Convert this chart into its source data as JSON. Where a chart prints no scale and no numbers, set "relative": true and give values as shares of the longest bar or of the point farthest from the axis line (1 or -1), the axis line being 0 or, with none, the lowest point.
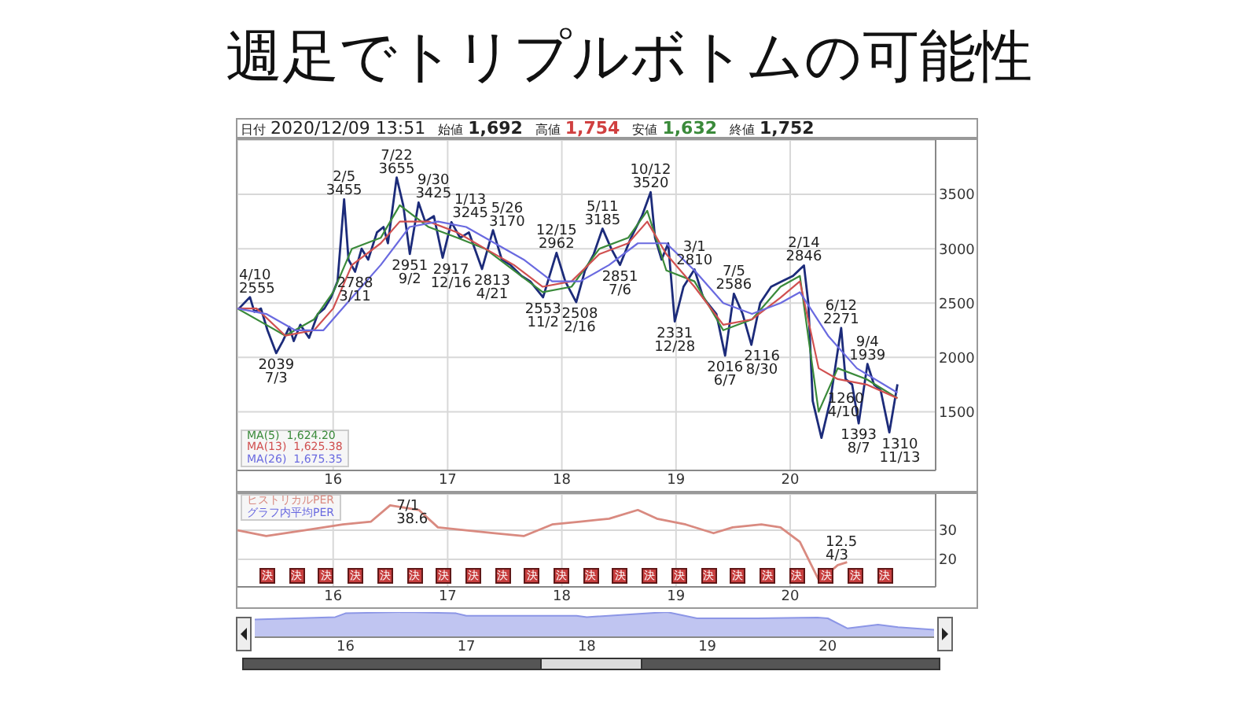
{
  "chart_data": [
    {
      "type": "line",
      "title": "週足でトリプルボトムの可能性",
      "annotations": [
        "日付",
        "2020/12/09 13:51",
        "始値",
        "1,692",
        "高値",
        "1,754",
        "安値",
        "1,632",
        "終値",
        "1,752",
        {
          "text": "4/10 2555",
          "x": "2015-04-10",
          "y": 2555
        },
        {
          "text": "2039 7/3",
          "x": "2015-07-03",
          "y": 2039
        },
        {
          "text": "2/5 3455",
          "x": "2016-02-05",
          "y": 3455
        },
        {
          "text": "2788 3/11",
          "x": "2016-03-11",
          "y": 2788
        },
        {
          "text": "7/22 3655",
          "x": "2016-07-22",
          "y": 3655
        },
        {
          "text": "2951 9/2",
          "x": "2016-09-02",
          "y": 2951
        },
        {
          "text": "9/30 3425",
          "x": "2016-09-30",
          "y": 3425
        },
        {
          "text": "2917 12/16",
          "x": "2016-12-16",
          "y": 2917
        },
        {
          "text": "1/13 3245",
          "x": "2017-01-13",
          "y": 3245
        },
        {
          "text": "2813 4/21",
          "x": "2017-04-21",
          "y": 2813
        },
        {
          "text": "5/26 3170",
          "x": "2017-05-26",
          "y": 3170
        },
        {
          "text": "2553 11/2",
          "x": "2017-11-02",
          "y": 2553
        },
        {
          "text": "12/15 2962",
          "x": "2017-12-15",
          "y": 2962
        },
        {
          "text": "2508 2/16",
          "x": "2018-02-16",
          "y": 2508
        },
        {
          "text": "5/11 3185",
          "x": "2018-05-11",
          "y": 3185
        },
        {
          "text": "2851 7/6",
          "x": "2018-07-06",
          "y": 2851
        },
        {
          "text": "10/12 3520",
          "x": "2018-10-12",
          "y": 3520
        },
        {
          "text": "2331 12/28",
          "x": "2018-12-28",
          "y": 2331
        },
        {
          "text": "3/1 2810",
          "x": "2019-03-01",
          "y": 2810
        },
        {
          "text": "2016 6/7",
          "x": "2019-06-07",
          "y": 2016
        },
        {
          "text": "7/5 2586",
          "x": "2019-07-05",
          "y": 2586
        },
        {
          "text": "2116 8/30",
          "x": "2019-08-30",
          "y": 2116
        },
        {
          "text": "2/14 2846",
          "x": "2020-02-14",
          "y": 2846
        },
        {
          "text": "1260 4/10",
          "x": "2020-04-10",
          "y": 1260
        },
        {
          "text": "6/12 2271",
          "x": "2020-06-12",
          "y": 2271
        },
        {
          "text": "1393 8/7",
          "x": "2020-08-07",
          "y": 1393
        },
        {
          "text": "9/4 1939",
          "x": "2020-09-04",
          "y": 1939
        },
        {
          "text": "1310 11/13",
          "x": "2020-11-13",
          "y": 1310
        }
      ],
      "xlim": [
        "2015-03-01",
        "2021-04-10"
      ],
      "xticks": [
        {
          "value": "2016",
          "label": "16"
        },
        {
          "value": "2017",
          "label": "17"
        },
        {
          "value": "2018",
          "label": "18"
        },
        {
          "value": "2019",
          "label": "19"
        },
        {
          "value": "2020",
          "label": "20"
        }
      ],
      "ylim": [
        960,
        4000
      ],
      "yticks": [
        1500,
        2000,
        2500,
        3000,
        3500
      ],
      "grid": true,
      "legend": "bottom left",
      "series": [
        {
          "color": "#1c2b7a",
          "x": [
            "2015-03-06",
            "2015-04-10",
            "2015-04-24",
            "2015-05-15",
            "2015-06-05",
            "2015-07-03",
            "2015-07-24",
            "2015-08-14",
            "2015-08-28",
            "2015-09-18",
            "2015-10-16",
            "2015-11-13",
            "2015-12-04",
            "2015-12-25",
            "2016-01-15",
            "2016-02-05",
            "2016-02-19",
            "2016-03-11",
            "2016-04-01",
            "2016-04-22",
            "2016-05-20",
            "2016-06-10",
            "2016-06-24",
            "2016-07-22",
            "2016-08-12",
            "2016-09-02",
            "2016-09-30",
            "2016-10-21",
            "2016-11-18",
            "2016-12-16",
            "2017-01-13",
            "2017-02-10",
            "2017-03-10",
            "2017-04-21",
            "2017-05-26",
            "2017-06-23",
            "2017-07-21",
            "2017-08-25",
            "2017-09-22",
            "2017-11-02",
            "2017-12-15",
            "2018-01-12",
            "2018-02-16",
            "2018-03-16",
            "2018-04-13",
            "2018-05-11",
            "2018-06-08",
            "2018-07-06",
            "2018-08-10",
            "2018-09-14",
            "2018-10-12",
            "2018-10-26",
            "2018-11-16",
            "2018-12-07",
            "2018-12-28",
            "2019-01-25",
            "2019-03-01",
            "2019-03-29",
            "2019-05-10",
            "2019-06-07",
            "2019-07-05",
            "2019-08-02",
            "2019-08-30",
            "2019-09-27",
            "2019-11-01",
            "2019-12-06",
            "2020-01-10",
            "2020-02-14",
            "2020-02-28",
            "2020-03-13",
            "2020-04-10",
            "2020-05-08",
            "2020-06-12",
            "2020-06-26",
            "2020-07-17",
            "2020-08-07",
            "2020-09-04",
            "2020-09-25",
            "2020-10-16",
            "2020-11-13",
            "2020-12-09"
          ],
          "values": [
            2450,
            2555,
            2420,
            2450,
            2250,
            2039,
            2150,
            2280,
            2150,
            2300,
            2180,
            2400,
            2450,
            2550,
            2700,
            3455,
            2900,
            2788,
            3000,
            2900,
            3150,
            3200,
            3050,
            3655,
            3400,
            2951,
            3425,
            3250,
            3300,
            2917,
            3245,
            3100,
            3150,
            2813,
            3170,
            2900,
            2850,
            2750,
            2700,
            2553,
            2962,
            2700,
            2508,
            2800,
            2950,
            3185,
            3000,
            2851,
            3100,
            3300,
            3520,
            3100,
            2900,
            3050,
            2331,
            2650,
            2810,
            2550,
            2400,
            2016,
            2586,
            2400,
            2116,
            2500,
            2650,
            2700,
            2750,
            2846,
            2500,
            1600,
            1260,
            1600,
            2271,
            1800,
            1750,
            1393,
            1939,
            1750,
            1700,
            1310,
            1752
          ]
        },
        {
          "name": "MA(5)  1,624.20",
          "color": "#3a8a3a",
          "x": [
            "2015-03",
            "2015-06",
            "2015-08",
            "2015-11",
            "2016-01",
            "2016-03",
            "2016-06",
            "2016-08",
            "2016-11",
            "2017-02",
            "2017-05",
            "2017-08",
            "2017-11",
            "2018-02",
            "2018-05",
            "2018-08",
            "2018-10",
            "2018-12",
            "2019-03",
            "2019-06",
            "2019-09",
            "2019-12",
            "2020-02",
            "2020-04",
            "2020-06",
            "2020-09",
            "2020-12-09"
          ],
          "values": [
            2450,
            2300,
            2200,
            2350,
            2600,
            3000,
            3100,
            3400,
            3200,
            3100,
            3000,
            2800,
            2600,
            2650,
            3000,
            3100,
            3350,
            2800,
            2700,
            2250,
            2350,
            2650,
            2750,
            1500,
            1900,
            1800,
            1624
          ]
        },
        {
          "name": "MA(13)  1,625.38",
          "color": "#d05050",
          "x": [
            "2015-03",
            "2015-05",
            "2015-08",
            "2015-11",
            "2016-01",
            "2016-03",
            "2016-06",
            "2016-08",
            "2016-11",
            "2017-02",
            "2017-05",
            "2017-08",
            "2017-11",
            "2018-02",
            "2018-05",
            "2018-08",
            "2018-10",
            "2018-12",
            "2019-03",
            "2019-06",
            "2019-09",
            "2019-12",
            "2020-02",
            "2020-04",
            "2020-06",
            "2020-09",
            "2020-12-09"
          ],
          "values": [
            2450,
            2450,
            2200,
            2250,
            2450,
            2850,
            3050,
            3250,
            3250,
            3150,
            3000,
            2850,
            2650,
            2700,
            2950,
            3050,
            3250,
            2950,
            2650,
            2300,
            2350,
            2550,
            2700,
            1900,
            1800,
            1750,
            1625
          ]
        },
        {
          "name": "MA(26)  1,675.35",
          "color": "#6a6ae0",
          "x": [
            "2015-03",
            "2015-06",
            "2015-09",
            "2015-12",
            "2016-03",
            "2016-06",
            "2016-09",
            "2016-12",
            "2017-03",
            "2017-06",
            "2017-09",
            "2017-12",
            "2018-03",
            "2018-06",
            "2018-09",
            "2018-12",
            "2019-03",
            "2019-06",
            "2019-09",
            "2019-12",
            "2020-02",
            "2020-05",
            "2020-08",
            "2020-12-09"
          ],
          "values": [
            2450,
            2400,
            2250,
            2250,
            2550,
            2850,
            3200,
            3250,
            3200,
            3050,
            2900,
            2700,
            2700,
            2850,
            3050,
            3050,
            2800,
            2500,
            2400,
            2500,
            2600,
            2200,
            1900,
            1675
          ]
        }
      ]
    },
    {
      "type": "line",
      "legend": "top left",
      "grid": true,
      "annotations": [
        {
          "text": "7/1 38.6",
          "x": "2016-07-01",
          "y": 38.6
        },
        {
          "text": "12.5 4/3",
          "x": "2020-04-03",
          "y": 12.5
        },
        "グラフ内平均PER",
        "決",
        "決",
        "決",
        "決",
        "決",
        "決",
        "決",
        "決",
        "決",
        "決",
        "決",
        "決",
        "決",
        "決",
        "決",
        "決",
        "決",
        "決",
        "決",
        "決",
        "決",
        "決"
      ],
      "xlim": [
        "2015-03-01",
        "2021-04-10"
      ],
      "xticks": [
        {
          "value": "2016",
          "label": "16"
        },
        {
          "value": "2017",
          "label": "17"
        },
        {
          "value": "2018",
          "label": "18"
        },
        {
          "value": "2019",
          "label": "19"
        },
        {
          "value": "2020",
          "label": "20"
        }
      ],
      "ylim": [
        10.5,
        42.5
      ],
      "yticks": [
        20,
        30
      ],
      "series": [
        {
          "name": "ヒストリカルPER",
          "color": "#d98a80",
          "x": [
            "2015-03",
            "2015-06",
            "2015-10",
            "2016-02",
            "2016-05",
            "2016-07-01",
            "2016-10",
            "2016-12",
            "2017-03",
            "2017-06",
            "2017-09",
            "2017-12",
            "2018-03",
            "2018-06",
            "2018-09",
            "2018-11",
            "2019-02",
            "2019-05",
            "2019-07",
            "2019-10",
            "2019-12",
            "2020-02",
            "2020-04-03",
            "2020-06",
            "2020-07"
          ],
          "values": [
            30,
            28,
            30,
            32,
            33,
            38.6,
            37,
            31,
            30,
            29,
            28,
            32,
            33,
            34,
            37,
            34,
            32,
            29,
            31,
            32,
            31,
            26,
            12.5,
            18,
            19
          ]
        }
      ]
    },
    {
      "type": "area",
      "relative": true,
      "tick_labels": "x",
      "grid": "x",
      "xlim": [
        "2015-04",
        "2020-11-18"
      ],
      "xticks": [
        {
          "value": "2016",
          "label": "16"
        },
        {
          "value": "2017",
          "label": "17"
        },
        {
          "value": "2018",
          "label": "18"
        },
        {
          "value": "2019",
          "label": "19"
        },
        {
          "value": "2020",
          "label": "20"
        }
      ],
      "series": [
        {
          "color": "#8c96e6",
          "x": [
            "2015-04",
            "2015-12",
            "2016-01",
            "2016-07",
            "2016-12",
            "2017-01",
            "2017-12",
            "2018-01",
            "2018-09",
            "2018-12",
            "2019-06",
            "2019-12",
            "2020-01",
            "2020-03",
            "2020-06",
            "2020-08",
            "2020-11-18"
          ],
          "values": [
            0.7,
            0.8,
            0.95,
            1,
            0.95,
            0.85,
            0.85,
            0.8,
            1,
            0.75,
            0.75,
            0.78,
            0.75,
            0.35,
            0.5,
            0.4,
            0.3
          ]
        }
      ]
    }
  ]
}
